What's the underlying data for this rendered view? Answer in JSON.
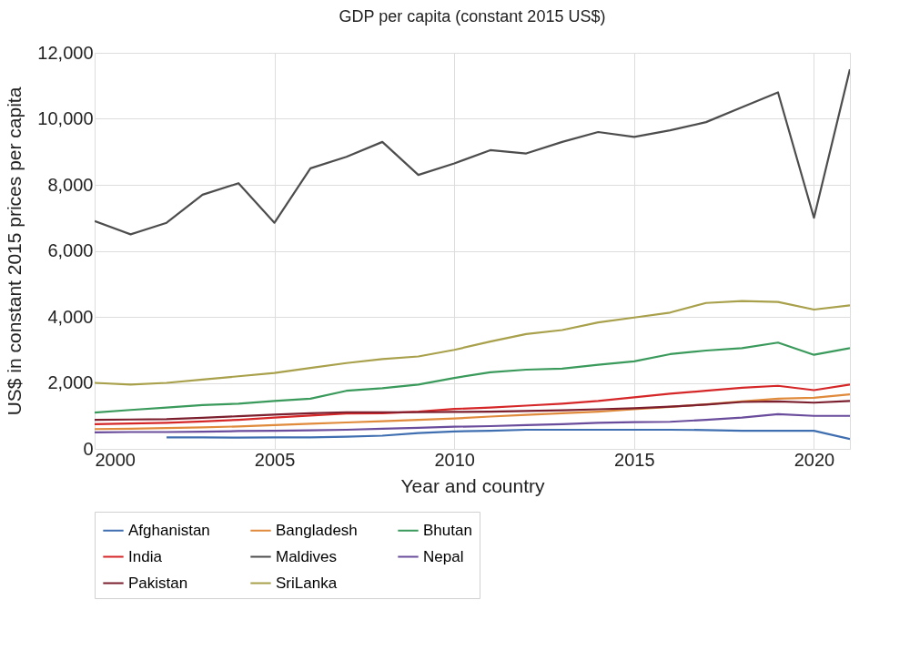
{
  "chart_data": {
    "type": "line",
    "title": "GDP per capita (constant 2015 US$)",
    "xlabel": "Year and country",
    "ylabel": "US$ in constant 2015 prices per capita",
    "x": [
      2000,
      2001,
      2002,
      2003,
      2004,
      2005,
      2006,
      2007,
      2008,
      2009,
      2010,
      2011,
      2012,
      2013,
      2014,
      2015,
      2016,
      2017,
      2018,
      2019,
      2020,
      2021
    ],
    "series": [
      {
        "name": "Afghanistan",
        "color": "#3f6fb0",
        "values": [
          null,
          null,
          350,
          350,
          340,
          350,
          350,
          370,
          400,
          480,
          530,
          550,
          580,
          580,
          580,
          580,
          580,
          570,
          550,
          550,
          550,
          300
        ]
      },
      {
        "name": "Bangladesh",
        "color": "#e08a3c",
        "values": [
          600,
          610,
          630,
          650,
          680,
          720,
          760,
          800,
          840,
          880,
          920,
          980,
          1030,
          1080,
          1130,
          1200,
          1270,
          1350,
          1440,
          1520,
          1550,
          1650
        ]
      },
      {
        "name": "Bhutan",
        "color": "#3a9a5b",
        "values": [
          1100,
          1180,
          1250,
          1330,
          1370,
          1450,
          1520,
          1760,
          1840,
          1950,
          2150,
          2320,
          2400,
          2430,
          2550,
          2650,
          2870,
          2980,
          3050,
          3220,
          2850,
          3050
        ]
      },
      {
        "name": "India",
        "color": "#d62728",
        "values": [
          750,
          770,
          790,
          830,
          880,
          950,
          1010,
          1070,
          1080,
          1130,
          1210,
          1250,
          1310,
          1370,
          1450,
          1560,
          1670,
          1760,
          1850,
          1910,
          1780,
          1950
        ]
      },
      {
        "name": "Maldives",
        "color": "#4d4d4d",
        "values": [
          6900,
          6500,
          6850,
          7700,
          8050,
          6850,
          8500,
          8850,
          9300,
          8300,
          8650,
          9050,
          8950,
          9300,
          9600,
          9450,
          9650,
          9900,
          10350,
          10800,
          7000,
          11500
        ]
      },
      {
        "name": "Nepal",
        "color": "#6a4c9c",
        "values": [
          500,
          510,
          510,
          520,
          540,
          550,
          560,
          580,
          610,
          640,
          670,
          690,
          720,
          750,
          790,
          810,
          820,
          880,
          950,
          1050,
          1000,
          1000
        ]
      },
      {
        "name": "Pakistan",
        "color": "#7b1f2e",
        "values": [
          880,
          890,
          900,
          940,
          990,
          1040,
          1080,
          1110,
          1110,
          1110,
          1120,
          1130,
          1150,
          1170,
          1200,
          1230,
          1280,
          1340,
          1420,
          1440,
          1400,
          1450
        ]
      },
      {
        "name": "SriLanka",
        "color": "#a8a04a",
        "values": [
          2000,
          1950,
          2000,
          2100,
          2200,
          2300,
          2450,
          2600,
          2720,
          2800,
          3000,
          3250,
          3480,
          3600,
          3830,
          3980,
          4130,
          4420,
          4480,
          4450,
          4220,
          4350
        ]
      }
    ],
    "xlim": [
      2000,
      2021
    ],
    "xticks": [
      2000,
      2005,
      2010,
      2015,
      2020
    ],
    "ylim": [
      0,
      12000
    ],
    "yticks": [
      0,
      {
        "value": 2000,
        "label": "2,000"
      },
      {
        "value": 4000,
        "label": "4,000"
      },
      {
        "value": 6000,
        "label": "6,000"
      },
      {
        "value": 8000,
        "label": "8,000"
      },
      {
        "value": 10000,
        "label": "10,000"
      },
      {
        "value": 12000,
        "label": "12,000"
      }
    ],
    "grid": true,
    "legend": "bottom",
    "marker": "none",
    "line_style": "solid"
  }
}
